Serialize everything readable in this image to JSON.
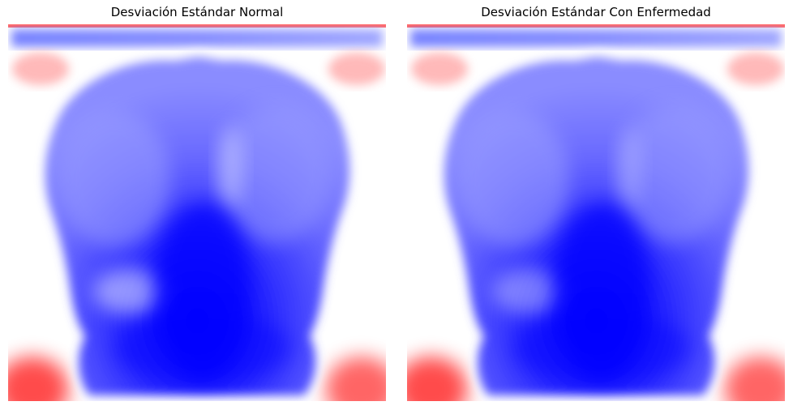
{
  "chart_data": [
    {
      "type": "heatmap",
      "title": "Desviación Estándar Normal",
      "colormap": "bwr",
      "colormap_low": "#0000ff",
      "colormap_mid": "#ffffff",
      "colormap_high": "#ff0000",
      "axes_visible": false,
      "grid": false,
      "colorbar": false
    },
    {
      "type": "heatmap",
      "title": "Desviación Estándar Con Enfermedad",
      "colormap": "bwr",
      "colormap_low": "#0000ff",
      "colormap_mid": "#ffffff",
      "colormap_high": "#ff0000",
      "axes_visible": false,
      "grid": false,
      "colorbar": false
    }
  ]
}
